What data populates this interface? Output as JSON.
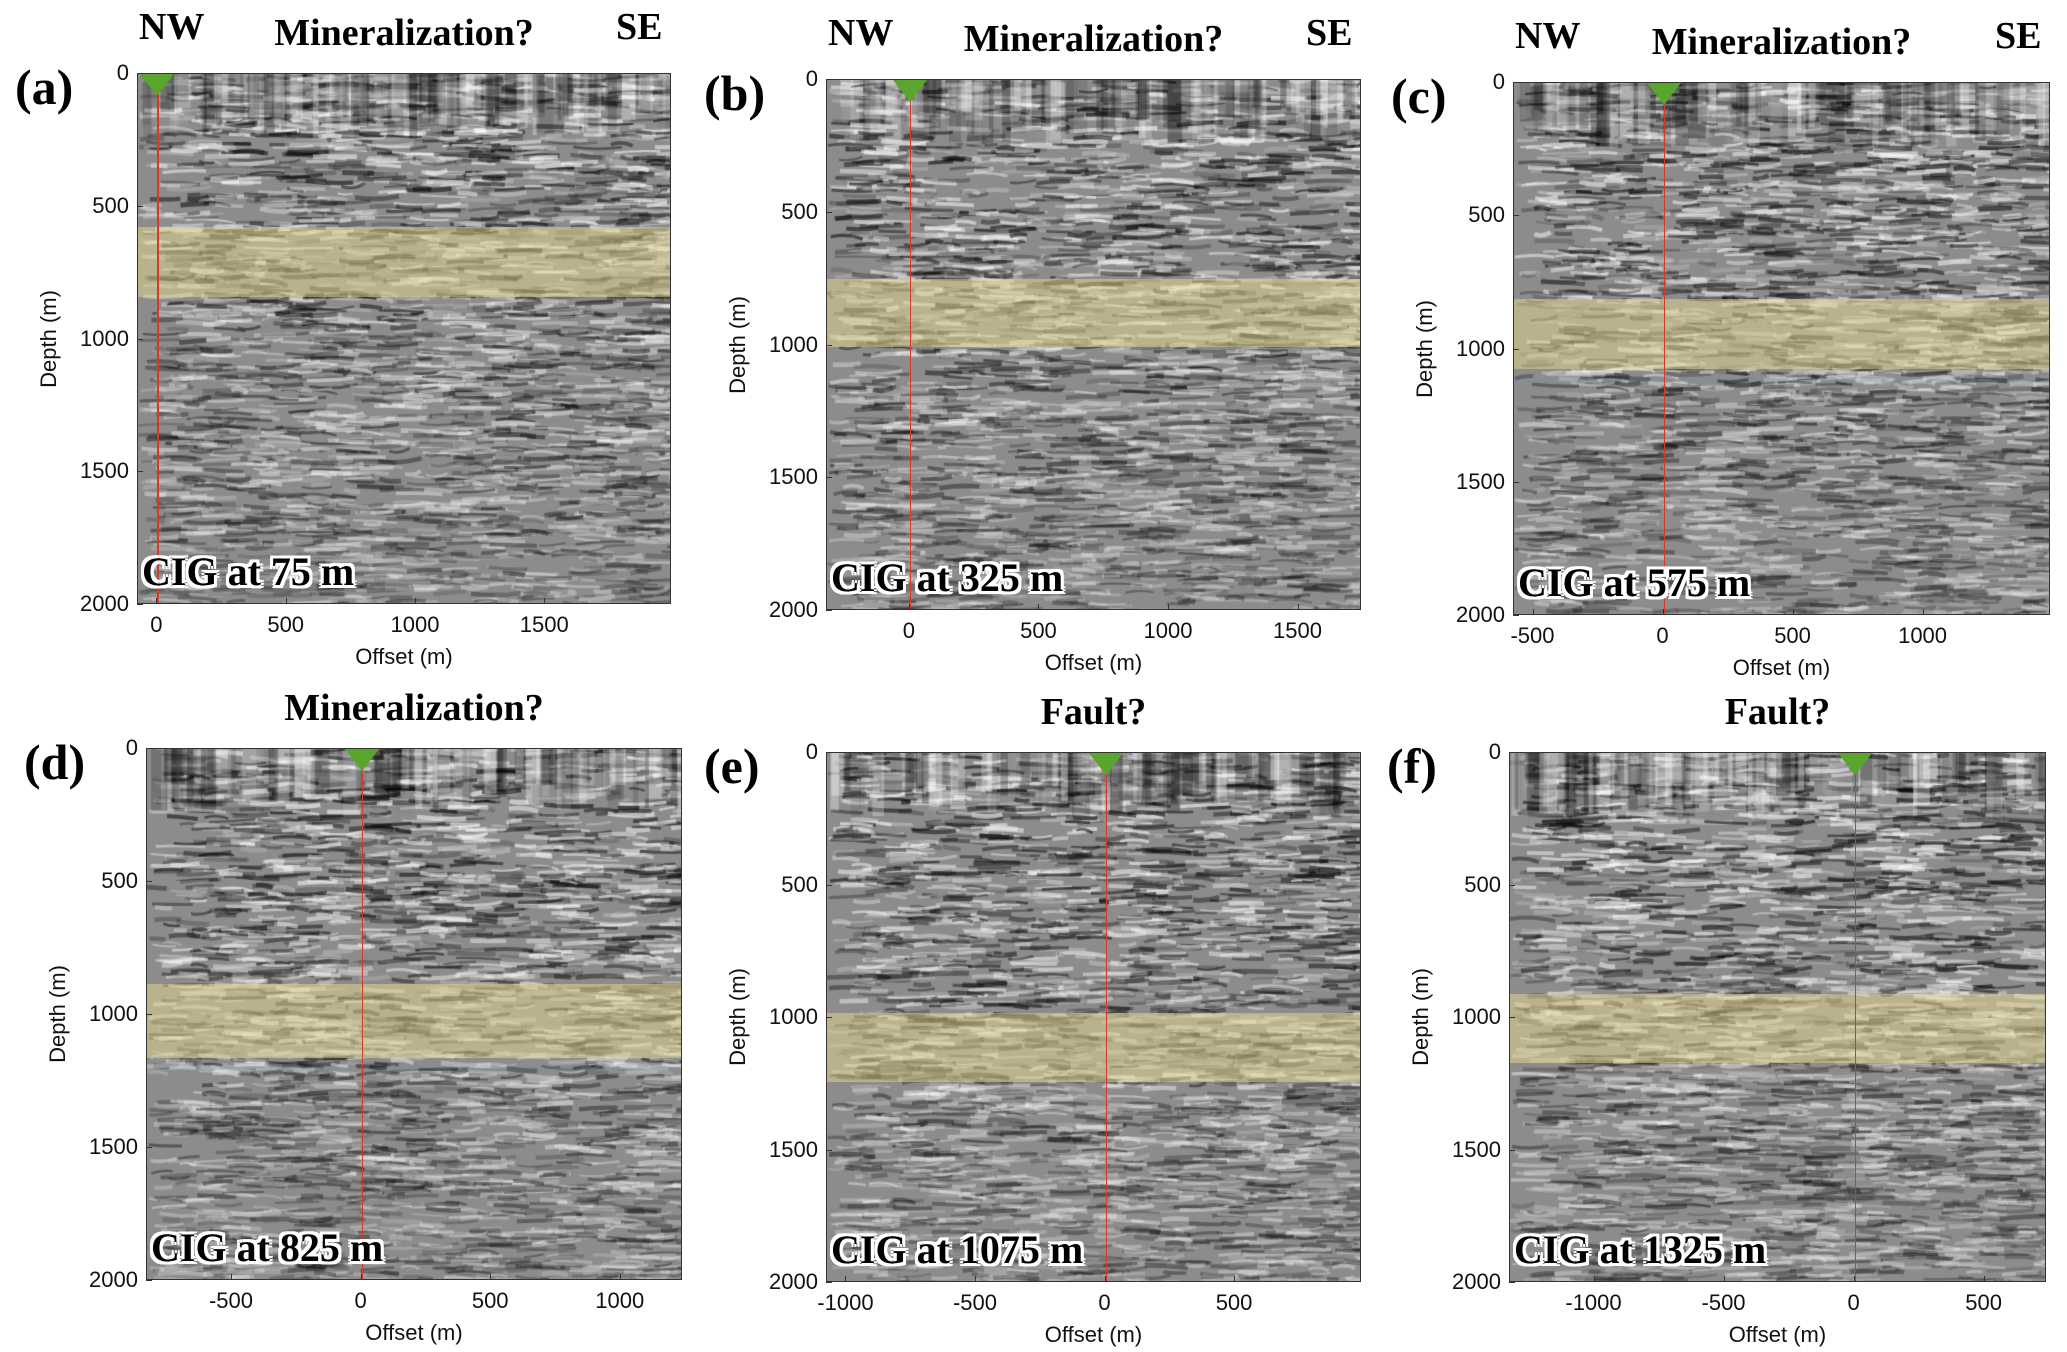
{
  "colors": {
    "band": "#e6d88c",
    "receiver_line": "#d43a2a",
    "marker": "#5aa62c"
  },
  "chart_data": [
    {
      "type": "heatmap",
      "panel": "(a)",
      "left_label": "NW",
      "title": "Mineralization?",
      "right_label": "SE",
      "annotation": "CIG at 75 m",
      "xlabel": "Offset (m)",
      "ylabel": "Depth (m)",
      "xlim": [
        -75,
        1990
      ],
      "ylim": [
        0,
        2000
      ],
      "y_reversed": true,
      "xticks": [
        0,
        500,
        1000,
        1500
      ],
      "yticks": [
        0,
        500,
        1000,
        1500,
        2000
      ],
      "highlight_depth": [
        575,
        840
      ],
      "marker_offset": 0,
      "colormap": "gray"
    },
    {
      "type": "heatmap",
      "panel": "(b)",
      "left_label": "NW",
      "title": "Mineralization?",
      "right_label": "SE",
      "annotation": "CIG at 325 m",
      "xlabel": "Offset (m)",
      "ylabel": "Depth (m)",
      "xlim": [
        -320,
        1745
      ],
      "ylim": [
        0,
        2000
      ],
      "y_reversed": true,
      "xticks": [
        0,
        500,
        1000,
        1500
      ],
      "yticks": [
        0,
        500,
        1000,
        1500,
        2000
      ],
      "highlight_depth": [
        750,
        1005
      ],
      "marker_offset": 0,
      "colormap": "gray"
    },
    {
      "type": "heatmap",
      "panel": "(c)",
      "left_label": "NW",
      "title": "Mineralization?",
      "right_label": "SE",
      "annotation": "CIG at 575 m",
      "xlabel": "Offset (m)",
      "ylabel": "Depth (m)",
      "xlim": [
        -575,
        1490
      ],
      "ylim": [
        0,
        2000
      ],
      "y_reversed": true,
      "xticks": [
        -500,
        0,
        500,
        1000
      ],
      "yticks": [
        0,
        500,
        1000,
        1500,
        2000
      ],
      "highlight_depth": [
        810,
        1075
      ],
      "marker_offset": 0,
      "colormap": "gray"
    },
    {
      "type": "heatmap",
      "panel": "(d)",
      "left_label": "",
      "title": "Mineralization?",
      "right_label": "",
      "annotation": "CIG at 825 m",
      "xlabel": "Offset (m)",
      "ylabel": "Depth (m)",
      "xlim": [
        -828,
        1240
      ],
      "ylim": [
        0,
        2000
      ],
      "y_reversed": true,
      "xticks": [
        -500,
        0,
        500,
        1000
      ],
      "yticks": [
        0,
        500,
        1000,
        1500,
        2000
      ],
      "highlight_depth": [
        885,
        1160
      ],
      "marker_offset": 0,
      "colormap": "gray"
    },
    {
      "type": "heatmap",
      "panel": "(e)",
      "left_label": "",
      "title": "Fault?",
      "right_label": "",
      "annotation": "CIG at 1075 m",
      "xlabel": "Offset (m)",
      "ylabel": "Depth (m)",
      "xlim": [
        -1075,
        990
      ],
      "ylim": [
        0,
        2000
      ],
      "y_reversed": true,
      "xticks": [
        -1000,
        -500,
        0,
        500
      ],
      "yticks": [
        0,
        500,
        1000,
        1500,
        2000
      ],
      "highlight_depth": [
        980,
        1240
      ],
      "marker_offset": 0,
      "colormap": "gray"
    },
    {
      "type": "heatmap",
      "panel": "(f)",
      "left_label": "",
      "title": "Fault?",
      "right_label": "",
      "annotation": "CIG at 1325 m",
      "xlabel": "Offset (m)",
      "ylabel": "Depth (m)",
      "xlim": [
        -1325,
        740
      ],
      "ylim": [
        0,
        2000
      ],
      "y_reversed": true,
      "xticks": [
        -1000,
        -500,
        0,
        500
      ],
      "yticks": [
        0,
        500,
        1000,
        1500,
        2000
      ],
      "highlight_depth": [
        910,
        1170
      ],
      "marker_offset": 0,
      "colormap": "gray"
    }
  ]
}
